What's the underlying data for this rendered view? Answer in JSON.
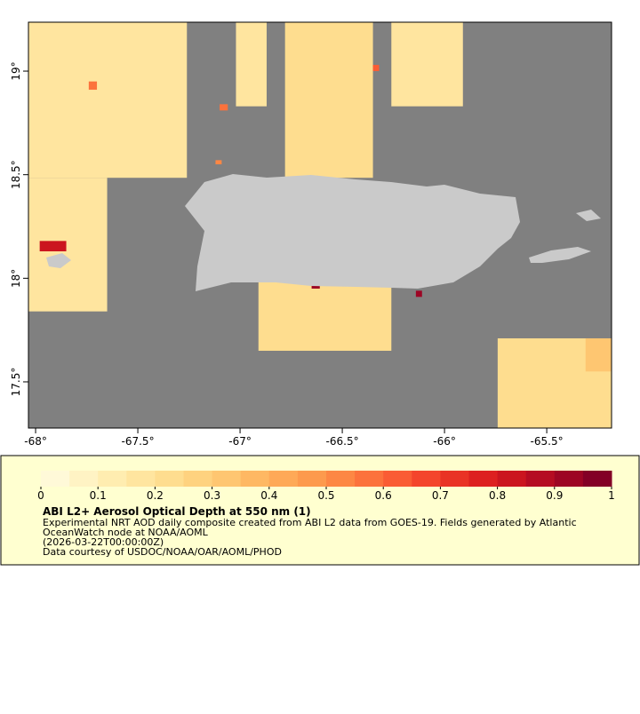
{
  "chart_data": {
    "type": "map",
    "xlim": [
      -68.035,
      -65.183
    ],
    "ylim": [
      17.277,
      19.236
    ],
    "xticks": [
      {
        "value": -68,
        "label": "-68°"
      },
      {
        "value": -67.5,
        "label": "-67.5°"
      },
      {
        "value": -67,
        "label": "-67°"
      },
      {
        "value": -66.5,
        "label": "-66.5°"
      },
      {
        "value": -66,
        "label": "-66°"
      },
      {
        "value": -65.5,
        "label": "-65.5°"
      }
    ],
    "yticks": [
      {
        "value": 19,
        "label": "19°"
      },
      {
        "value": 18.5,
        "label": "18.5°"
      },
      {
        "value": 18,
        "label": "18°"
      },
      {
        "value": 17.5,
        "label": "17.5°"
      }
    ],
    "cells": [
      {
        "lon": [
          -68.035,
          -67.26
        ],
        "lat": [
          18.485,
          19.236
        ],
        "value": 0.15
      },
      {
        "lon": [
          -68.035,
          -67.65
        ],
        "lat": [
          17.84,
          18.485
        ],
        "value": 0.15
      },
      {
        "lon": [
          -67.02,
          -66.87
        ],
        "lat": [
          18.83,
          19.236
        ],
        "value": 0.15
      },
      {
        "lon": [
          -66.78,
          -66.35
        ],
        "lat": [
          18.485,
          19.236
        ],
        "value": 0.2
      },
      {
        "lon": [
          -66.26,
          -65.91
        ],
        "lat": [
          18.83,
          19.236
        ],
        "value": 0.15
      },
      {
        "lon": [
          -66.91,
          -66.26
        ],
        "lat": [
          17.65,
          17.98
        ],
        "value": 0.2
      },
      {
        "lon": [
          -65.74,
          -65.183
        ],
        "lat": [
          17.277,
          17.71
        ],
        "value": 0.2
      },
      {
        "lon": [
          -65.31,
          -65.183
        ],
        "lat": [
          17.55,
          17.71
        ],
        "value": 0.3
      },
      {
        "lon": [
          -67.74,
          -67.7
        ],
        "lat": [
          18.91,
          18.95
        ],
        "value": 0.55
      },
      {
        "lon": [
          -67.1,
          -67.06
        ],
        "lat": [
          18.81,
          18.84
        ],
        "value": 0.55
      },
      {
        "lon": [
          -67.12,
          -67.09
        ],
        "lat": [
          18.55,
          18.57
        ],
        "value": 0.5
      },
      {
        "lon": [
          -66.35,
          -66.32
        ],
        "lat": [
          19.0,
          19.03
        ],
        "value": 0.6
      },
      {
        "lon": [
          -67.98,
          -67.85
        ],
        "lat": [
          18.13,
          18.18
        ],
        "value": 0.8
      },
      {
        "lon": [
          -66.65,
          -66.61
        ],
        "lat": [
          17.95,
          17.97
        ],
        "value": 0.9
      },
      {
        "lon": [
          -66.14,
          -66.11
        ],
        "lat": [
          17.91,
          17.94
        ],
        "value": 0.9
      }
    ],
    "colorbar": {
      "lim": [
        0,
        1
      ],
      "ticks": [
        0,
        0.1,
        0.2,
        0.3,
        0.4,
        0.5,
        0.6,
        0.7,
        0.8,
        0.9,
        1
      ],
      "colors": [
        "#fff9d8",
        "#fff3c4",
        "#ffedb0",
        "#ffe59f",
        "#fedd8f",
        "#fed27f",
        "#fec671",
        "#feb863",
        "#fea957",
        "#fd9a4d",
        "#fd8744",
        "#fc723c",
        "#fa5c34",
        "#f4452c",
        "#e93325",
        "#dd2020",
        "#cb151f",
        "#b50c22",
        "#9d0524",
        "#830026"
      ]
    },
    "title": "ABI L2+ Aerosol Optical Depth at 550 nm (1)",
    "description": [
      "Experimental NRT AOD daily composite created from ABI L2 data from GOES-19. Fields generated by Atlantic",
      "OceanWatch node at NOAA/AOML",
      "(2026-03-22T00:00:00Z)",
      "Data courtesy of USDOC/NOAA/OAR/AOML/PHOD"
    ]
  }
}
